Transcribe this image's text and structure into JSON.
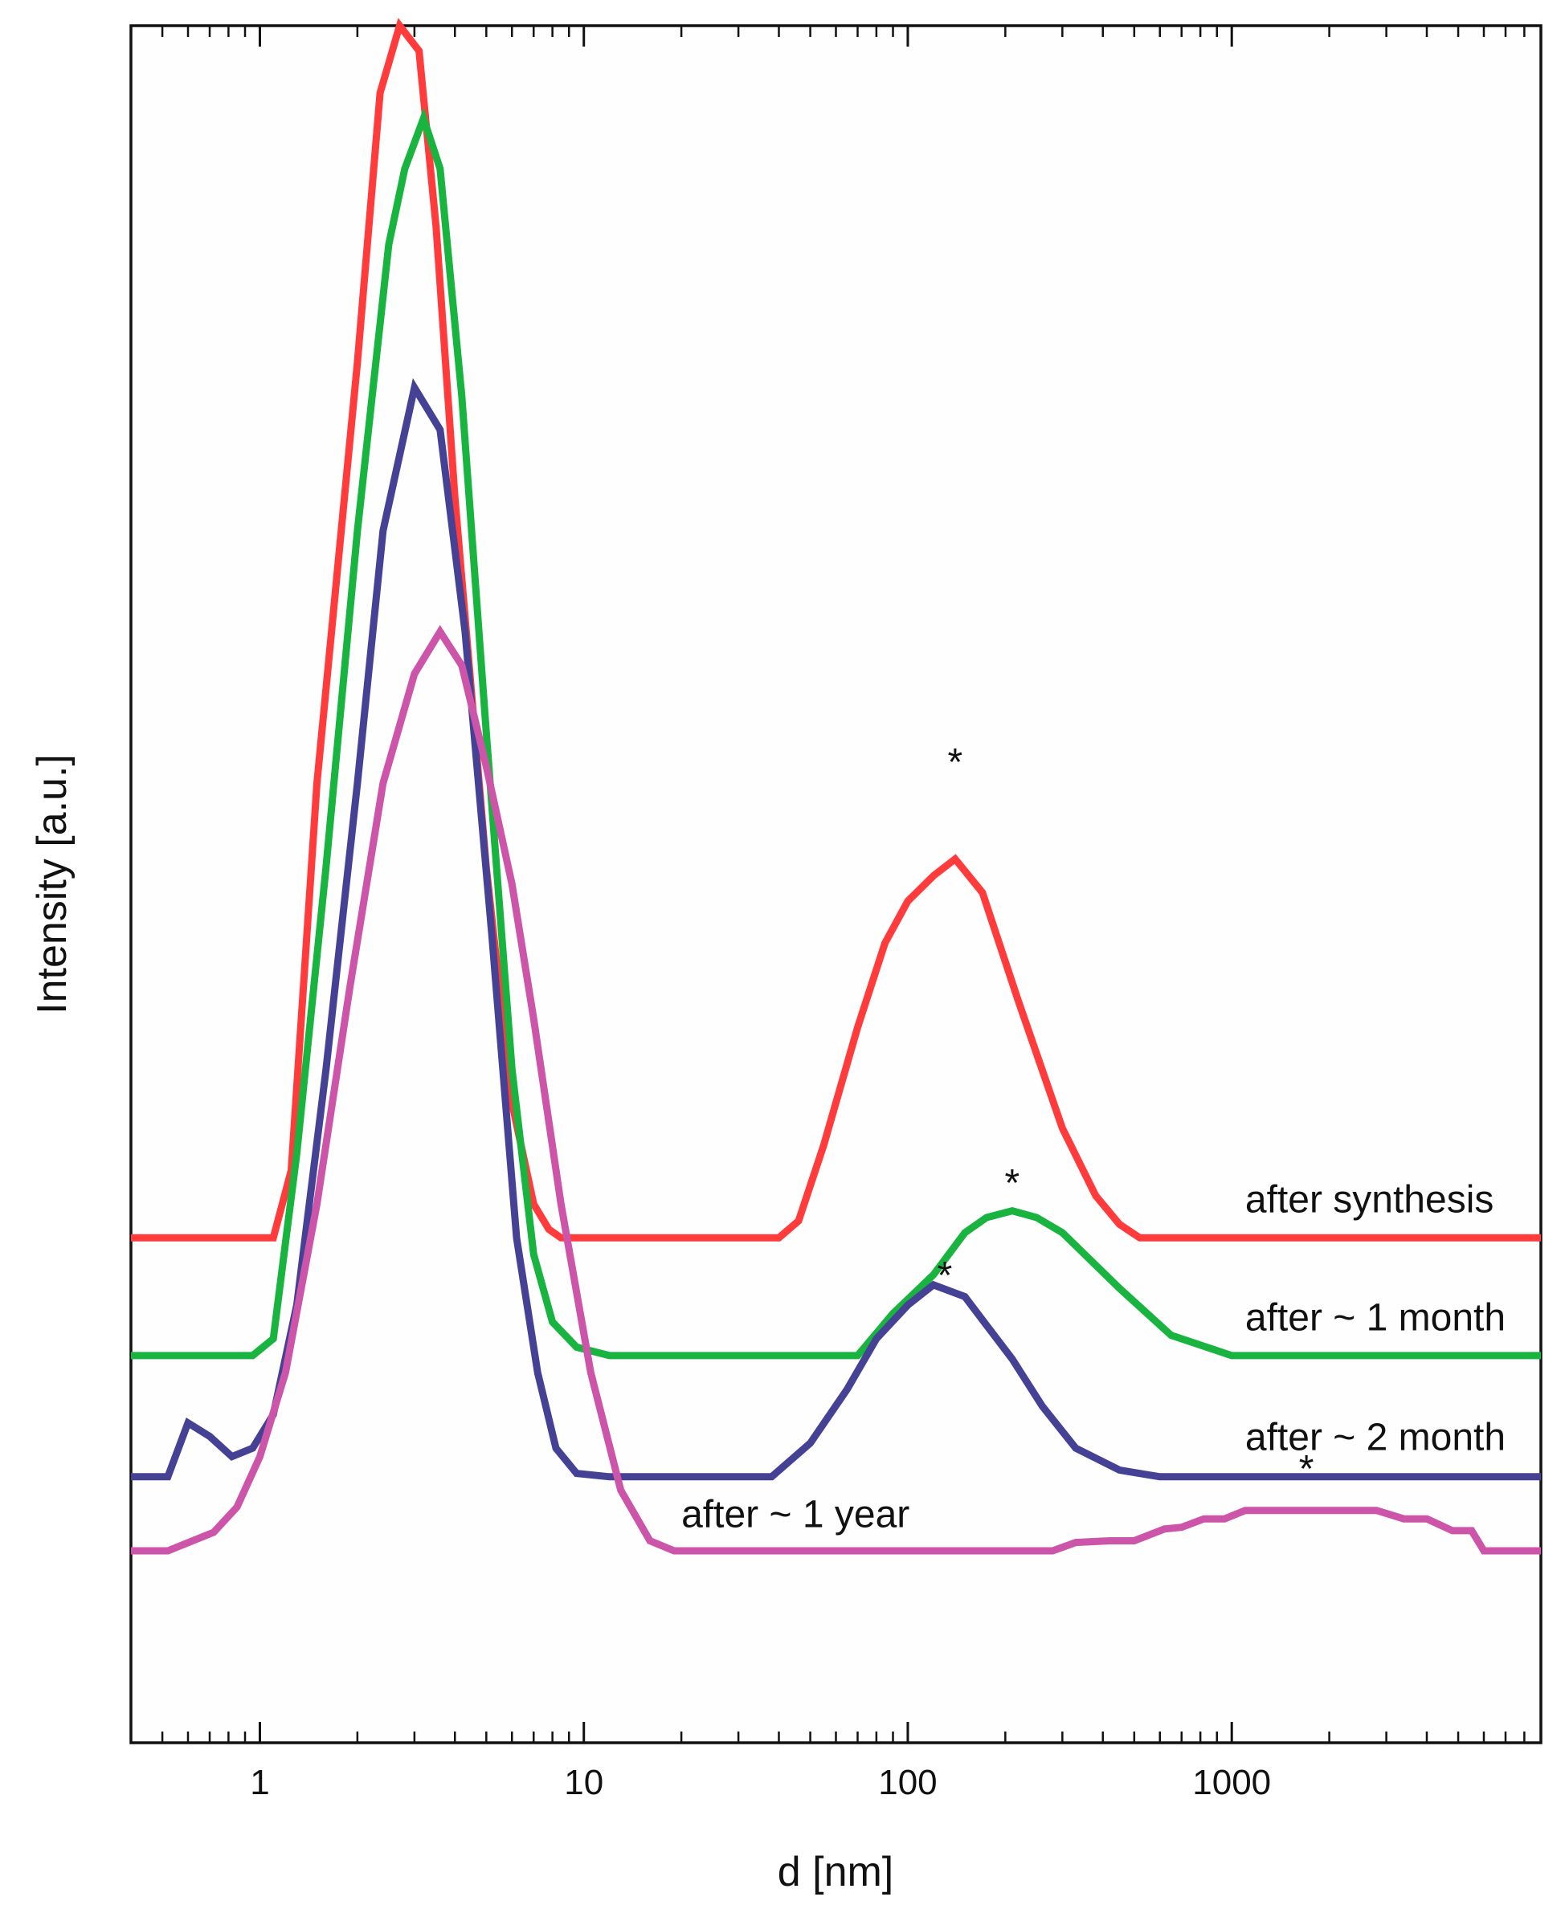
{
  "chart_data": {
    "type": "line",
    "title": "",
    "xlabel": "d [nm]",
    "ylabel": "Intensity [a.u.]",
    "xscale": "log",
    "xlim": [
      0.4,
      9000
    ],
    "ylim": [
      -0.02,
      1.0
    ],
    "grid": false,
    "x_ticks": [
      1,
      10,
      100,
      1000
    ],
    "x_tick_labels": [
      "1",
      "10",
      "100",
      "1000"
    ],
    "y_ticks_labeled": false,
    "series": [
      {
        "name": "after synthesis",
        "color": "#ff3b3b",
        "baseline": 0.28,
        "label_at": [
          1100,
          0.295
        ],
        "star_at": [
          140,
          0.555
        ],
        "x": [
          0.4,
          1.1,
          1.25,
          1.5,
          2.0,
          2.35,
          2.7,
          3.1,
          3.5,
          4.0,
          5.0,
          6.0,
          7.0,
          7.8,
          8.5,
          9.5,
          15,
          25,
          40,
          46,
          55,
          70,
          85,
          100,
          120,
          140,
          170,
          220,
          300,
          380,
          450,
          520,
          800,
          2000,
          9000
        ],
        "y": [
          0.28,
          0.28,
          0.32,
          0.55,
          0.8,
          0.96,
          1.0,
          0.985,
          0.88,
          0.72,
          0.5,
          0.36,
          0.3,
          0.285,
          0.28,
          0.28,
          0.28,
          0.28,
          0.28,
          0.29,
          0.335,
          0.405,
          0.455,
          0.48,
          0.495,
          0.505,
          0.485,
          0.42,
          0.345,
          0.305,
          0.288,
          0.28,
          0.28,
          0.28,
          0.28
        ]
      },
      {
        "name": "after ~ 1 month",
        "color": "#19b33f",
        "baseline": 0.21,
        "label_at": [
          1100,
          0.225
        ],
        "star_at": [
          210,
          0.305
        ],
        "x": [
          0.4,
          0.95,
          1.1,
          1.3,
          1.6,
          2.0,
          2.5,
          2.8,
          3.2,
          3.6,
          4.2,
          5.0,
          6.0,
          7.0,
          8.0,
          9.5,
          12,
          20,
          40,
          70,
          90,
          120,
          150,
          175,
          210,
          250,
          300,
          450,
          650,
          1000,
          2000,
          9000
        ],
        "y": [
          0.21,
          0.21,
          0.22,
          0.33,
          0.5,
          0.7,
          0.87,
          0.915,
          0.945,
          0.915,
          0.78,
          0.58,
          0.38,
          0.27,
          0.23,
          0.215,
          0.21,
          0.21,
          0.21,
          0.21,
          0.235,
          0.258,
          0.283,
          0.292,
          0.296,
          0.292,
          0.283,
          0.25,
          0.222,
          0.21,
          0.21,
          0.21
        ]
      },
      {
        "name": "after ~ 2 month",
        "color": "#454296",
        "baseline": 0.138,
        "label_at": [
          1100,
          0.154
        ],
        "star_at": [
          130,
          0.25
        ],
        "x": [
          0.4,
          0.52,
          0.6,
          0.7,
          0.82,
          0.95,
          1.1,
          1.3,
          1.6,
          2.0,
          2.4,
          3.0,
          3.6,
          4.3,
          5.2,
          6.2,
          7.2,
          8.2,
          9.5,
          12,
          20,
          38,
          50,
          65,
          80,
          100,
          120,
          150,
          175,
          210,
          260,
          330,
          450,
          600,
          1000,
          9000
        ],
        "y": [
          0.138,
          0.138,
          0.17,
          0.162,
          0.15,
          0.155,
          0.175,
          0.24,
          0.38,
          0.55,
          0.7,
          0.785,
          0.76,
          0.64,
          0.46,
          0.28,
          0.2,
          0.155,
          0.14,
          0.138,
          0.138,
          0.138,
          0.158,
          0.19,
          0.22,
          0.24,
          0.252,
          0.245,
          0.228,
          0.208,
          0.18,
          0.155,
          0.142,
          0.138,
          0.138,
          0.138
        ]
      },
      {
        "name": "after ~ 1 year",
        "color": "#cc55aa",
        "baseline": 0.094,
        "label_at": [
          20,
          0.108
        ],
        "star_at": [
          1700,
          0.135
        ],
        "x": [
          0.4,
          0.52,
          0.72,
          0.85,
          1.0,
          1.2,
          1.5,
          1.9,
          2.4,
          3.0,
          3.6,
          4.2,
          5.0,
          6.0,
          7.0,
          8.5,
          10.5,
          13,
          16,
          19,
          30,
          100,
          280,
          330,
          420,
          500,
          620,
          700,
          820,
          950,
          1100,
          1500,
          2000,
          2800,
          3400,
          4000,
          4800,
          5500,
          6000,
          9000
        ],
        "y": [
          0.094,
          0.094,
          0.105,
          0.12,
          0.15,
          0.2,
          0.3,
          0.43,
          0.55,
          0.615,
          0.64,
          0.62,
          0.56,
          0.49,
          0.41,
          0.3,
          0.2,
          0.13,
          0.1,
          0.094,
          0.094,
          0.094,
          0.094,
          0.099,
          0.1,
          0.1,
          0.107,
          0.108,
          0.113,
          0.113,
          0.118,
          0.118,
          0.118,
          0.118,
          0.113,
          0.113,
          0.106,
          0.106,
          0.094,
          0.094
        ]
      }
    ]
  }
}
